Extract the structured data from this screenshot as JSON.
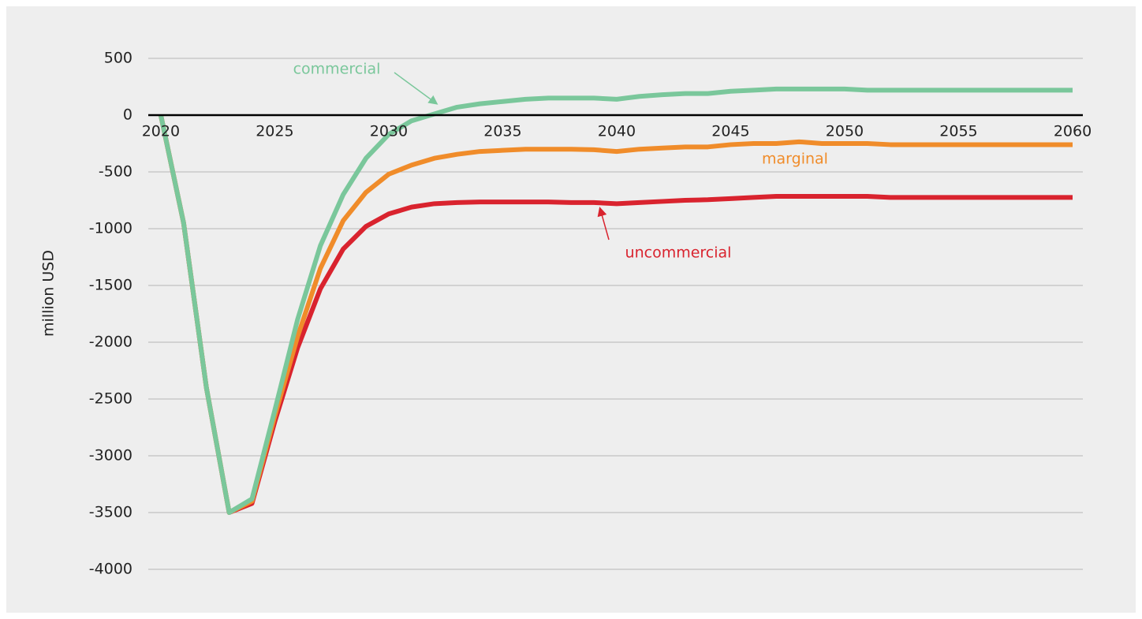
{
  "chart_data": {
    "type": "line",
    "y_label": "million USD",
    "x": [
      2020,
      2021,
      2022,
      2023,
      2024,
      2025,
      2026,
      2027,
      2028,
      2029,
      2030,
      2031,
      2032,
      2033,
      2034,
      2035,
      2036,
      2037,
      2038,
      2039,
      2040,
      2041,
      2042,
      2043,
      2044,
      2045,
      2046,
      2047,
      2048,
      2049,
      2050,
      2051,
      2052,
      2053,
      2054,
      2055,
      2056,
      2057,
      2058,
      2059,
      2060
    ],
    "series": [
      {
        "name": "uncommercial",
        "color": "#d9232e",
        "values": [
          0,
          -950,
          -2400,
          -3500,
          -3420,
          -2700,
          -2050,
          -1530,
          -1180,
          -980,
          -870,
          -810,
          -780,
          -770,
          -765,
          -765,
          -765,
          -765,
          -770,
          -770,
          -780,
          -770,
          -760,
          -750,
          -745,
          -735,
          -725,
          -715,
          -715,
          -715,
          -715,
          -715,
          -725,
          -725,
          -725,
          -725,
          -725,
          -725,
          -725,
          -725,
          -725
        ]
      },
      {
        "name": "marginal",
        "color": "#f08c2a",
        "values": [
          0,
          -950,
          -2400,
          -3500,
          -3400,
          -2650,
          -1950,
          -1350,
          -930,
          -680,
          -520,
          -440,
          -380,
          -345,
          -320,
          -310,
          -300,
          -300,
          -300,
          -305,
          -320,
          -300,
          -290,
          -280,
          -280,
          -260,
          -250,
          -250,
          -235,
          -250,
          -250,
          -250,
          -260,
          -260,
          -260,
          -260,
          -260,
          -260,
          -260,
          -260,
          -260
        ]
      },
      {
        "name": "commercial",
        "color": "#7ac79b",
        "values": [
          0,
          -950,
          -2400,
          -3500,
          -3380,
          -2600,
          -1800,
          -1150,
          -700,
          -380,
          -170,
          -50,
          10,
          70,
          100,
          120,
          140,
          150,
          150,
          150,
          140,
          165,
          180,
          190,
          190,
          210,
          220,
          230,
          230,
          230,
          230,
          220,
          220,
          220,
          220,
          220,
          220,
          220,
          220,
          220,
          220
        ]
      }
    ],
    "annotations": [
      "commercial",
      "marginal",
      "uncommercial"
    ],
    "xlim": [
      2019.45,
      2060.45
    ],
    "xticks": [
      2020,
      2025,
      2030,
      2035,
      2040,
      2045,
      2050,
      2055,
      2060
    ],
    "ylim": [
      -4000,
      500
    ],
    "yticks": [
      500,
      0,
      -500,
      -1000,
      -1500,
      -2000,
      -2500,
      -3000,
      -3500,
      -4000
    ],
    "grid": true
  }
}
